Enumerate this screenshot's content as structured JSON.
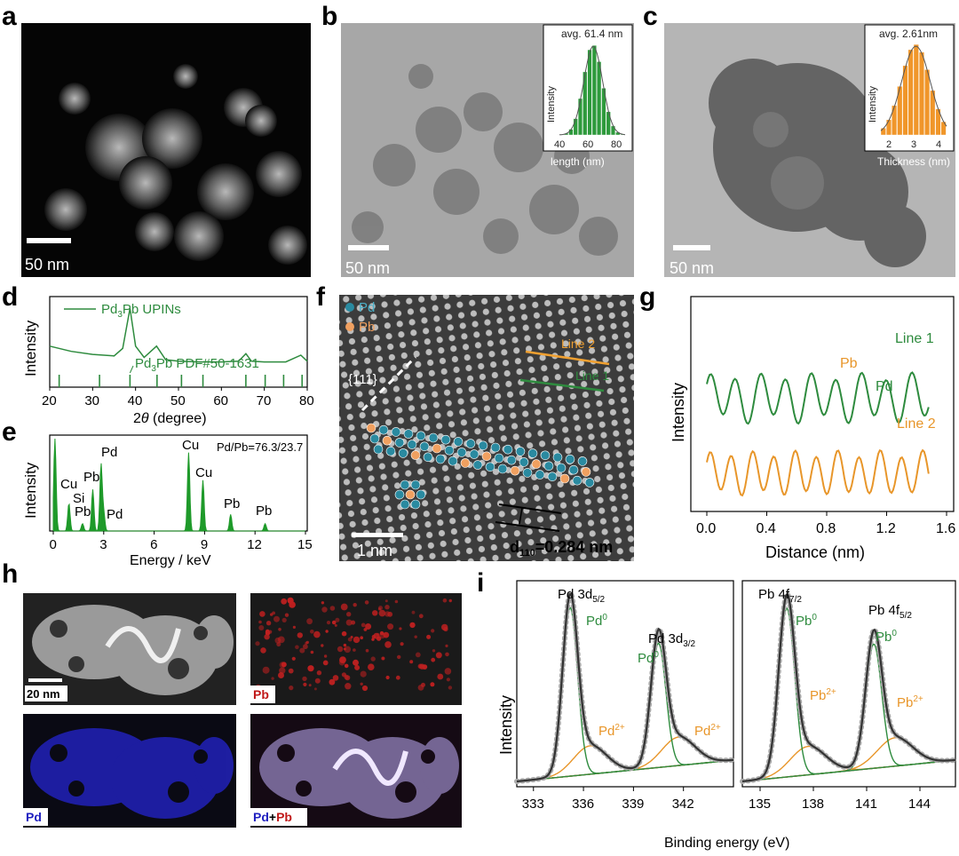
{
  "panels": {
    "a": {
      "letter": "a",
      "scale": "50 nm"
    },
    "b": {
      "letter": "b",
      "scale": "50 nm",
      "inset_title": "avg. 61.4 nm",
      "inset_ylabel": "Intensity",
      "inset_xlabel": "length (nm)",
      "inset_ticks": [
        "40",
        "60",
        "80"
      ],
      "bar_color": "#2e9a3c"
    },
    "c": {
      "letter": "c",
      "scale": "50 nm",
      "inset_title": "avg. 2.61nm",
      "inset_ylabel": "Intensity",
      "inset_xlabel": "Thickness (nm)",
      "inset_ticks": [
        "2",
        "3",
        "4"
      ],
      "bar_color": "#f0962a"
    },
    "d": {
      "letter": "d",
      "legend": "Pd",
      "legend_sub": "3",
      "legend_rest": "Pb UPINs",
      "ref_label": "Pd",
      "ref_sub": "3",
      "ref_rest": "Pb PDF#50-1631",
      "ylabel": "Intensity",
      "xlabel_pre": "2",
      "xlabel_theta": "θ",
      "xlabel_post": " (degree)",
      "ticks": [
        "20",
        "30",
        "40",
        "50",
        "60",
        "70",
        "80"
      ]
    },
    "e": {
      "letter": "e",
      "ylabel": "Intensity",
      "xlabel": "Energy / keV",
      "ratio": "Pd/Pb=76.3/23.7",
      "ticks": [
        "0",
        "3",
        "6",
        "9",
        "12",
        "15"
      ],
      "peaks": [
        "Cu",
        "Si",
        "Pb",
        "Pb",
        "Pd",
        "Pd",
        "Cu",
        "Cu",
        "Pb",
        "Pb"
      ]
    },
    "f": {
      "letter": "f",
      "pd": "Pd",
      "pb": "Pb",
      "plane": "{111}",
      "line2": "Line 2",
      "line1": "Line 1",
      "scale": "1 nm",
      "d_pre": "d",
      "d_sub": "110",
      "d_post": "=0.284 nm"
    },
    "g": {
      "letter": "g",
      "line1": "Line 1",
      "line2": "Line 2",
      "pb": "Pb",
      "pd": "Pd",
      "ylabel": "Intensity",
      "xlabel": "Distance (nm)",
      "ticks": [
        "0.0",
        "0.4",
        "0.8",
        "1.2",
        "1.6"
      ]
    },
    "h": {
      "letter": "h",
      "scale": "20 nm",
      "pb": "Pb",
      "pd": "Pd",
      "overlay_pd": "Pd",
      "overlay_plus": "+",
      "overlay_pb": "Pb"
    },
    "i": {
      "letter": "i",
      "ylabel": "Intensity",
      "xlabel": "Binding energy (eV)",
      "pd32": "Pd 3d",
      "pd32_sub": "5/2",
      "pd52": "Pd 3d",
      "pd52_sub": "3/2",
      "pd0": "Pd",
      "sup0": "0",
      "pd2": "Pd",
      "sup2": "2+",
      "pb72": "Pb 4f",
      "pb72_sub": "7/2",
      "pb52": "Pb 4f",
      "pb52_sub": "5/2",
      "pb0": "Pb",
      "pb2": "Pb",
      "ticks_left": [
        "333",
        "336",
        "339",
        "342"
      ],
      "ticks_right": [
        "135",
        "138",
        "141",
        "144"
      ]
    }
  },
  "chart_data": [
    {
      "type": "line",
      "title": "",
      "panel": "d",
      "ylabel": "Intensity",
      "xlabel": "2θ (degree)",
      "xlim": [
        20,
        80
      ],
      "series": [
        {
          "name": "Pd3Pb UPINs",
          "x": [
            20,
            25,
            30,
            35,
            37,
            38.7,
            40,
            42,
            44.9,
            47,
            50,
            55,
            60,
            64,
            65.7,
            67,
            70,
            75,
            78.5,
            80
          ],
          "y": [
            0.45,
            0.38,
            0.34,
            0.32,
            0.42,
            0.95,
            0.45,
            0.3,
            0.45,
            0.27,
            0.25,
            0.24,
            0.24,
            0.25,
            0.35,
            0.25,
            0.24,
            0.24,
            0.33,
            0.25
          ]
        }
      ],
      "reference_lines_x": [
        22.2,
        31.6,
        38.7,
        45.0,
        50.7,
        55.7,
        65.7,
        70.2,
        74.5,
        78.8
      ]
    },
    {
      "type": "bar",
      "title": "",
      "panel": "e",
      "xlabel": "Energy / keV",
      "ylabel": "Intensity",
      "xlim": [
        0,
        15
      ],
      "peaks_keV": [
        0.1,
        0.93,
        1.74,
        2.35,
        2.84,
        3.0,
        8.05,
        8.9,
        10.55,
        12.6
      ],
      "peak_heights": [
        1.0,
        0.3,
        0.08,
        0.45,
        0.72,
        0.2,
        0.85,
        0.55,
        0.18,
        0.08
      ]
    },
    {
      "type": "line",
      "title": "",
      "panel": "g",
      "xlabel": "Distance (nm)",
      "ylabel": "Intensity",
      "xlim": [
        0,
        1.6
      ],
      "series": [
        {
          "name": "Line 1"
        },
        {
          "name": "Line 2"
        }
      ]
    },
    {
      "type": "line",
      "title": "",
      "panel": "i",
      "xlabel": "Binding energy (eV)",
      "ylabel": "Intensity",
      "subplots": [
        {
          "xlim": [
            332,
            345
          ],
          "peaks": [
            335.2,
            340.5
          ]
        },
        {
          "xlim": [
            134,
            146
          ],
          "peaks": [
            136.5,
            141.4
          ]
        }
      ]
    }
  ]
}
